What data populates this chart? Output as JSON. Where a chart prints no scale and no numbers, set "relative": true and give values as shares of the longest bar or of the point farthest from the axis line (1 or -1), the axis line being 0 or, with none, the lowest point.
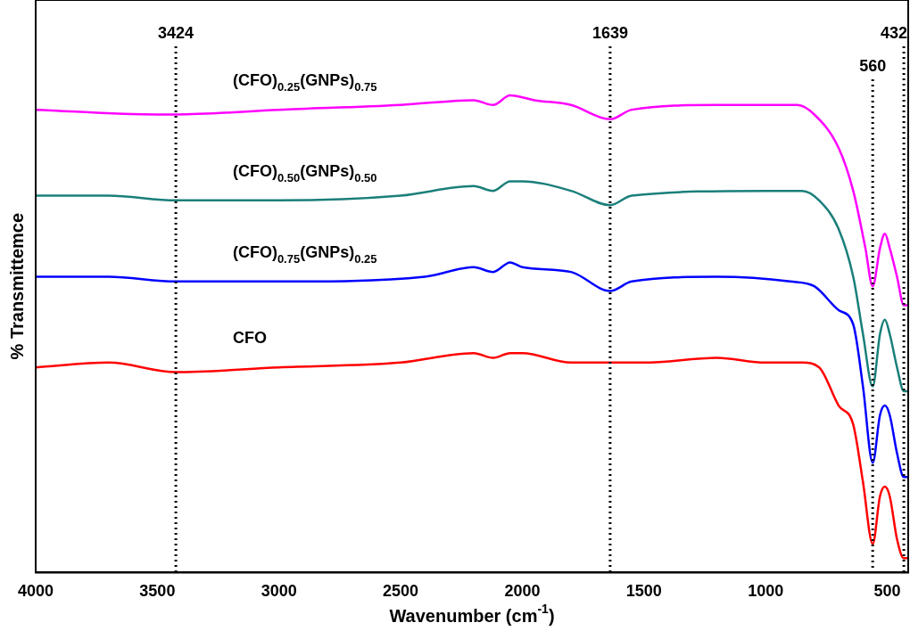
{
  "chart_data": {
    "type": "line",
    "xlabel": "Wavenumber (cm$^{-1}$)",
    "ylabel": "% Transmittemce",
    "relative": true,
    "xlim": [
      4000,
      414
    ],
    "xticks": [
      4000,
      3500,
      3000,
      2500,
      2000,
      1500,
      1000,
      500
    ],
    "tick_labels": "x",
    "grid": false,
    "legend": false,
    "marker": "none",
    "line_style": "solid",
    "series": [
      {
        "name": "(CFO)$_{0.25}$(GNPs)$_{0.75}$",
        "color": "#ff00ff",
        "x": [
          4000,
          3500,
          3424,
          3000,
          2500,
          2200,
          2120,
          2050,
          1950,
          1800,
          1639,
          1550,
          1200,
          1000,
          870,
          800,
          700,
          640,
          590,
          560,
          530,
          510,
          490,
          460,
          432,
          414
        ],
        "values": [
          0.97,
          0.96,
          0.96,
          0.97,
          0.98,
          0.99,
          0.98,
          1,
          0.99,
          0.98,
          0.95,
          0.97,
          0.98,
          0.98,
          0.98,
          0.96,
          0.89,
          0.8,
          0.68,
          0.6,
          0.68,
          0.71,
          0.68,
          0.62,
          0.56,
          0.56
        ]
      },
      {
        "name": "(CFO)$_{0.50}$(GNPs)$_{0.50}$",
        "color": "#1a7f7a",
        "x": [
          4000,
          3700,
          3424,
          3000,
          2500,
          2200,
          2120,
          2050,
          2000,
          1800,
          1639,
          1550,
          1000,
          850,
          780,
          700,
          640,
          600,
          560,
          530,
          510,
          490,
          460,
          432,
          414
        ],
        "values": [
          0.79,
          0.79,
          0.78,
          0.78,
          0.79,
          0.81,
          0.8,
          0.82,
          0.82,
          0.8,
          0.77,
          0.79,
          0.8,
          0.8,
          0.78,
          0.72,
          0.62,
          0.5,
          0.39,
          0.5,
          0.53,
          0.5,
          0.43,
          0.38,
          0.38
        ]
      },
      {
        "name": "(CFO)$_{0.75}$(GNPs)$_{0.25}$",
        "color": "#0000ff",
        "x": [
          4000,
          3700,
          3424,
          3000,
          2400,
          2200,
          2120,
          2050,
          2000,
          1800,
          1639,
          1550,
          1200,
          900,
          800,
          700,
          640,
          600,
          560,
          530,
          510,
          490,
          460,
          432,
          414
        ],
        "values": [
          0.62,
          0.62,
          0.61,
          0.61,
          0.62,
          0.64,
          0.63,
          0.65,
          0.64,
          0.63,
          0.59,
          0.61,
          0.62,
          0.61,
          0.6,
          0.55,
          0.52,
          0.39,
          0.23,
          0.33,
          0.35,
          0.33,
          0.25,
          0.2,
          0.2
        ]
      },
      {
        "name": "CFO",
        "color": "#ff0000",
        "x": [
          4000,
          3700,
          3424,
          3000,
          2500,
          2200,
          2120,
          2050,
          2000,
          1800,
          1639,
          1500,
          1200,
          1000,
          850,
          780,
          700,
          640,
          600,
          560,
          530,
          510,
          490,
          460,
          432,
          414
        ],
        "values": [
          0.43,
          0.44,
          0.42,
          0.43,
          0.44,
          0.46,
          0.45,
          0.46,
          0.46,
          0.44,
          0.44,
          0.44,
          0.45,
          0.44,
          0.44,
          0.43,
          0.35,
          0.31,
          0.19,
          0.06,
          0.16,
          0.18,
          0.16,
          0.07,
          0.03,
          0.03
        ]
      }
    ],
    "ref_lines": [
      {
        "axis": "x",
        "value": 3424,
        "label": "3424",
        "color": "#000000",
        "line_style": "dotted"
      },
      {
        "axis": "x",
        "value": 1639,
        "label": "1639",
        "color": "#000000",
        "line_style": "dotted"
      },
      {
        "axis": "x",
        "value": 560,
        "label": "560",
        "color": "#000000",
        "line_style": "dotted"
      },
      {
        "axis": "x",
        "value": 432,
        "label": "432",
        "color": "#000000",
        "line_style": "dotted"
      }
    ]
  }
}
